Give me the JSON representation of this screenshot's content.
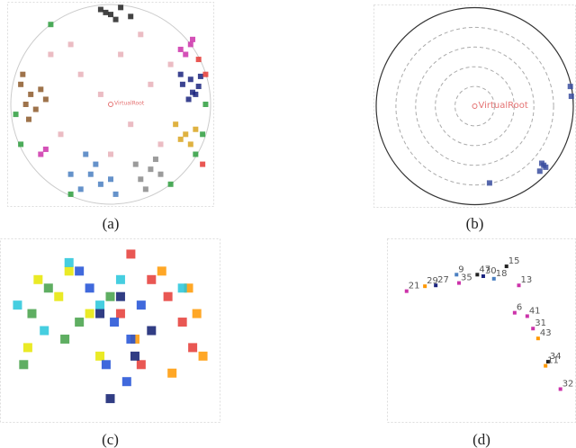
{
  "chart_data": [
    {
      "type": "scatter",
      "caption": "(a)",
      "annotation": "VirtualRoot",
      "frame": "disk",
      "xlim": [
        -1,
        1
      ],
      "ylim": [
        -1,
        1
      ],
      "series": [
        {
          "color": "#1a237e",
          "x": [
            0.72,
            0.8,
            0.85,
            0.78,
            0.88,
            0.7,
            0.9,
            0.82
          ],
          "y": [
            0.2,
            0.25,
            0.1,
            0.05,
            0.18,
            0.3,
            0.28,
            0.12
          ]
        },
        {
          "color": "#8d5a2b",
          "x": [
            -0.8,
            -0.85,
            -0.75,
            -0.9,
            -0.7,
            -0.82,
            -0.65,
            -0.88
          ],
          "y": [
            0.1,
            0.0,
            -0.05,
            0.2,
            0.15,
            -0.15,
            0.05,
            0.3
          ]
        },
        {
          "color": "#4a7fc1",
          "x": [
            -0.2,
            -0.1,
            0.0,
            -0.3,
            -0.15,
            0.05,
            -0.4,
            -0.25
          ],
          "y": [
            -0.7,
            -0.8,
            -0.75,
            -0.85,
            -0.6,
            -0.9,
            -0.7,
            -0.5
          ]
        },
        {
          "color": "#8a8a8a",
          "x": [
            0.3,
            0.4,
            0.35,
            0.5,
            0.25,
            0.45
          ],
          "y": [
            -0.75,
            -0.65,
            -0.85,
            -0.7,
            -0.6,
            -0.55
          ]
        },
        {
          "color": "#cc33aa",
          "x": [
            0.7,
            0.8,
            0.75,
            0.82,
            -0.65,
            -0.7
          ],
          "y": [
            0.55,
            0.6,
            0.5,
            0.65,
            -0.45,
            -0.5
          ]
        },
        {
          "color": "#d9a520",
          "x": [
            0.75,
            0.85,
            0.8,
            0.7,
            0.65
          ],
          "y": [
            -0.3,
            -0.25,
            -0.4,
            -0.35,
            -0.2
          ]
        },
        {
          "color": "#2e9e3e",
          "x": [
            -0.95,
            -0.9,
            0.95,
            0.92,
            -0.6,
            0.6,
            0.85,
            -0.4
          ],
          "y": [
            -0.1,
            -0.4,
            0.0,
            -0.3,
            0.8,
            -0.8,
            -0.5,
            -0.9
          ]
        },
        {
          "color": "#e8b0b8",
          "x": [
            -0.3,
            0.1,
            0.4,
            -0.5,
            0.2,
            -0.1,
            0.5,
            -0.4,
            0.0,
            0.3,
            -0.6,
            0.6
          ],
          "y": [
            0.3,
            0.5,
            0.2,
            -0.3,
            -0.2,
            0.1,
            -0.4,
            0.6,
            -0.5,
            0.7,
            0.5,
            0.4
          ]
        },
        {
          "color": "#222222",
          "x": [
            -0.1,
            0.0,
            0.1,
            0.05,
            -0.05,
            0.2
          ],
          "y": [
            0.95,
            0.9,
            0.97,
            0.85,
            0.92,
            0.88
          ]
        },
        {
          "color": "#e53935",
          "x": [
            0.88,
            0.92,
            0.95
          ],
          "y": [
            0.45,
            -0.6,
            0.3
          ]
        }
      ]
    },
    {
      "type": "scatter",
      "caption": "(b)",
      "annotation": "VirtualRoot",
      "frame": "rings",
      "xlim": [
        -1,
        1
      ],
      "ylim": [
        -1,
        1
      ],
      "series": [
        {
          "color": "#3b4fa0",
          "x": [
            0.97,
            0.98,
            0.7,
            0.72,
            0.66,
            0.68,
            0.15
          ],
          "y": [
            0.2,
            0.1,
            -0.6,
            -0.62,
            -0.66,
            -0.58,
            -0.78
          ]
        }
      ]
    },
    {
      "type": "scatter",
      "caption": "(c)",
      "frame": "box",
      "xlim": [
        0,
        100
      ],
      "ylim": [
        0,
        100
      ],
      "series": [
        {
          "color": "#e53935",
          "x": [
            60,
            70,
            78,
            85,
            55,
            90,
            65
          ],
          "y": [
            95,
            80,
            70,
            55,
            60,
            40,
            30
          ]
        },
        {
          "color": "#ff9800",
          "x": [
            75,
            88,
            92,
            62,
            80,
            95
          ],
          "y": [
            85,
            75,
            60,
            45,
            25,
            35
          ]
        },
        {
          "color": "#e6e600",
          "x": [
            15,
            25,
            40,
            10,
            30,
            45
          ],
          "y": [
            80,
            70,
            60,
            40,
            85,
            35
          ]
        },
        {
          "color": "#43a047",
          "x": [
            20,
            35,
            12,
            28,
            50,
            8
          ],
          "y": [
            75,
            55,
            60,
            45,
            70,
            30
          ]
        },
        {
          "color": "#26c6da",
          "x": [
            30,
            45,
            18,
            55,
            85,
            5
          ],
          "y": [
            90,
            65,
            50,
            80,
            75,
            65
          ]
        },
        {
          "color": "#1e4fd6",
          "x": [
            40,
            52,
            60,
            48,
            35,
            65,
            58
          ],
          "y": [
            75,
            55,
            45,
            30,
            85,
            65,
            20
          ]
        },
        {
          "color": "#0d1b6e",
          "x": [
            45,
            55,
            62,
            50,
            70
          ],
          "y": [
            60,
            70,
            35,
            10,
            50
          ]
        }
      ]
    },
    {
      "type": "labeled-scatter",
      "caption": "(d)",
      "frame": "box",
      "xlim": [
        0,
        100
      ],
      "ylim": [
        0,
        100
      ],
      "x": [
        7.1,
        17.6,
        23.8,
        35.7,
        37.1,
        47.6,
        51.0,
        64.3,
        57.1,
        71.4,
        69.0,
        76.2,
        79.5,
        82.4,
        88.1,
        86.7,
        95.2
      ],
      "y": [
        73.2,
        76.1,
        76.6,
        82.9,
        78.0,
        82.9,
        82.0,
        87.8,
        80.5,
        76.6,
        60.5,
        58.5,
        51.2,
        45.4,
        31.7,
        29.3,
        15.6
      ],
      "labels": [
        "21",
        "29",
        "27",
        "9",
        "35",
        "47",
        "30",
        "15",
        "18",
        "13",
        "6",
        "41",
        "31",
        "43",
        "34",
        "11",
        "32"
      ],
      "colors": [
        "#cc33aa",
        "#ff9800",
        "#1a237e",
        "#4a7fc1",
        "#cc33aa",
        "#222222",
        "#1a237e",
        "#222222",
        "#4a7fc1",
        "#cc33aa",
        "#cc33aa",
        "#cc33aa",
        "#cc33aa",
        "#ff9800",
        "#222222",
        "#ff9800",
        "#cc33aa"
      ]
    }
  ]
}
